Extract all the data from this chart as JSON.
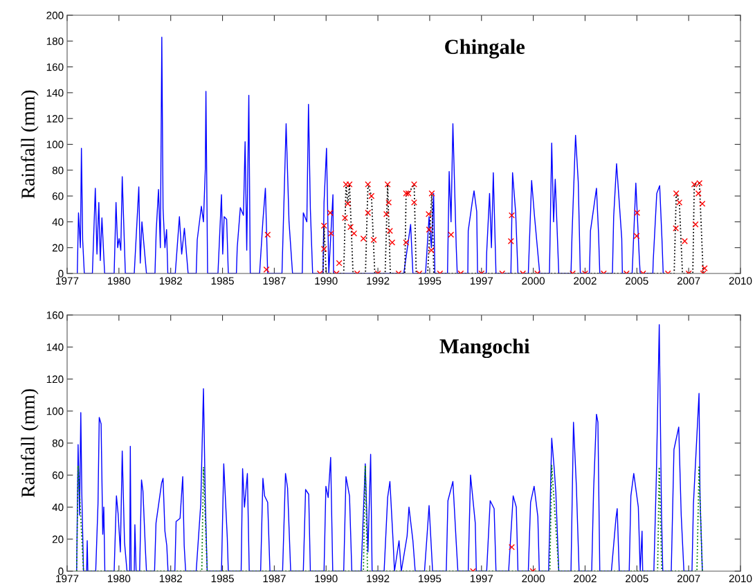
{
  "chart_data": [
    {
      "type": "line",
      "title": "Chingale",
      "ylabel": "Rainfall (mm)",
      "xlim": [
        1977.5,
        2010
      ],
      "ylim": [
        0,
        200
      ],
      "yticks": [
        0,
        20,
        40,
        60,
        80,
        100,
        120,
        140,
        160,
        180,
        200
      ],
      "grid": false,
      "xticks": [
        {
          "value": 1977.5,
          "label": "1977"
        },
        1980,
        {
          "value": 1982.5,
          "label": "1982"
        },
        1985,
        {
          "value": 1987.5,
          "label": "1987"
        },
        1990,
        {
          "value": 1992.5,
          "label": "1992"
        },
        1995,
        {
          "value": 1997.5,
          "label": "1997"
        },
        2000,
        {
          "value": 2002.5,
          "label": "2002"
        },
        2005,
        {
          "value": 2007.5,
          "label": "2007"
        },
        2010
      ],
      "series": [
        {
          "type": "line",
          "color": "#0000ff",
          "line_style": "solid",
          "marker": "none",
          "x": [
            1977.99,
            1978.05,
            1978.14,
            1978.19,
            1978.25,
            1978.33,
            1978.72,
            1978.86,
            1978.94,
            1979.03,
            1979.1,
            1979.18,
            1979.31,
            1979.77,
            1979.86,
            1979.94,
            1980.01,
            1980.09,
            1980.16,
            1980.31,
            1980.74,
            1980.96,
            1981.03,
            1981.11,
            1981.33,
            1981.74,
            1981.8,
            1981.91,
            1982.0,
            1982.07,
            1982.13,
            1982.22,
            1982.3,
            1982.36,
            1982.72,
            1982.92,
            1983.03,
            1983.16,
            1983.34,
            1983.73,
            1983.78,
            1983.98,
            1984.08,
            1984.17,
            1984.2,
            1984.28,
            1984.78,
            1984.95,
            1985.01,
            1985.08,
            1985.2,
            1985.28,
            1985.67,
            1985.71,
            1985.86,
            1986.01,
            1986.09,
            1986.17,
            1986.27,
            1986.34,
            1986.79,
            1986.95,
            1987.07,
            1987.18,
            1987.87,
            1988.07,
            1988.21,
            1988.38,
            1988.85,
            1988.9,
            1989.07,
            1989.15,
            1989.24,
            1989.35,
            1989.85,
            1989.9,
            1990.02,
            1990.13,
            1990.33,
            1990.36,
            1993.75,
            1994.08,
            1994.19,
            1994.8,
            1994.97,
            1995.08,
            1995.19,
            1995.25,
            1995.86,
            1995.94,
            1996.03,
            1996.12,
            1996.28,
            1996.33,
            1996.84,
            1996.86,
            1997.06,
            1997.14,
            1997.27,
            1997.31,
            1997.73,
            1997.75,
            1997.89,
            1997.98,
            1998.07,
            1998.2,
            1998.92,
            1999.0,
            1999.15,
            1999.26,
            1999.76,
            1999.92,
            2000.05,
            2000.31,
            2000.78,
            2000.89,
            2000.98,
            2001.06,
            2001.23,
            2001.82,
            2001.87,
            2002.04,
            2002.17,
            2002.27,
            2002.71,
            2002.76,
            2003.05,
            2003.15,
            2003.21,
            2003.82,
            2003.88,
            2004.02,
            2004.27,
            2004.3,
            2004.77,
            2004.79,
            2004.95,
            2005.12,
            2005.16,
            2005.77,
            2005.79,
            2005.96,
            2006.1,
            2006.21,
            2006.27
          ],
          "values": [
            0,
            47,
            20,
            97,
            26,
            0,
            0,
            66,
            15,
            55,
            10,
            43,
            0,
            0,
            55,
            20,
            27,
            18,
            75,
            0,
            0,
            67,
            8,
            40,
            0,
            0,
            33,
            65,
            20,
            183,
            50,
            20,
            34,
            0,
            0,
            44,
            15,
            35,
            0,
            0,
            26,
            52,
            40,
            81,
            141,
            0,
            0,
            61,
            15,
            44,
            42,
            0,
            0,
            20,
            51,
            45,
            102,
            18,
            138,
            0,
            0,
            41,
            66,
            0,
            0,
            116,
            40,
            0,
            0,
            47,
            40,
            131,
            50,
            0,
            0,
            55,
            97,
            0,
            61,
            0,
            0,
            38,
            0,
            0,
            44,
            20,
            62,
            0,
            0,
            79,
            40,
            116,
            21,
            0,
            0,
            33,
            56,
            64,
            48,
            0,
            0,
            16,
            62,
            20,
            78,
            0,
            0,
            78,
            47,
            0,
            0,
            72,
            46,
            0,
            0,
            101,
            40,
            73,
            0,
            0,
            30,
            107,
            71,
            0,
            0,
            33,
            66,
            31,
            0,
            0,
            44,
            85,
            27,
            0,
            0,
            7,
            70,
            11,
            0,
            0,
            10,
            62,
            68,
            27,
            0
          ]
        },
        {
          "type": "line",
          "color": "#000000",
          "line_style": "dotted",
          "marker": "none",
          "x": [
            1989.85,
            1989.9,
            1990.0,
            1990.85,
            1990.96,
            1991.05,
            1991.13,
            1991.3,
            1991.9,
            1992.02,
            1992.19,
            1992.35,
            1992.85,
            1992.97,
            1993.1,
            1993.8,
            1993.86,
            1993.97,
            1994.25,
            1994.35,
            1994.9,
            1995.1,
            1995.2,
            2006.8,
            2006.9,
            2007.05,
            2007.2,
            2007.7,
            2007.77,
            2008.02,
            2008.2
          ],
          "values": [
            0,
            37,
            0,
            0,
            69,
            54,
            69,
            0,
            0,
            69,
            60,
            0,
            0,
            69,
            0,
            0,
            62,
            62,
            69,
            0,
            0,
            62,
            0,
            0,
            62,
            55,
            0,
            0,
            69,
            70,
            0
          ]
        },
        {
          "type": "scatter",
          "color": "#ff0000",
          "marker": "cross",
          "x": [
            1987.18,
            1987.12,
            1989.9,
            1989.9,
            1990.2,
            1990.24,
            1990.63,
            1990.96,
            1991.13,
            1991.05,
            1990.91,
            1991.18,
            1991.35,
            1992.02,
            1992.19,
            1992.02,
            1991.8,
            1992.3,
            1992.97,
            1992.91,
            1993.02,
            1993.08,
            1993.19,
            1993.86,
            1993.86,
            1993.97,
            1994.25,
            1994.25,
            1994.95,
            1994.97,
            1995.1,
            1995.08,
            1996.03,
            1998.96,
            1998.92,
            2005.01,
            2004.99,
            2006.9,
            2007.05,
            2006.88,
            2007.31,
            2007.77,
            2008.02,
            2007.97,
            2008.16,
            2007.83,
            2008.27,
            1989.7,
            1990.5,
            1991.5,
            1992.5,
            1993.5,
            1994.5,
            1995.5,
            1996.5,
            1997.5,
            1998.5,
            1999.5,
            2000.2,
            2001.9,
            2002.5,
            2003.4,
            2004.5,
            2005.3,
            2006.5,
            2007.5,
            2008.2
          ],
          "values": [
            30,
            3,
            37,
            19,
            47,
            31,
            8,
            69,
            69,
            54,
            43,
            36,
            31,
            69,
            60,
            47,
            27,
            26,
            69,
            46,
            55,
            33,
            24,
            62,
            24,
            62,
            69,
            55,
            46,
            34,
            62,
            18,
            30,
            45,
            25,
            47,
            29,
            62,
            55,
            35,
            25,
            69,
            70,
            62,
            54,
            38,
            4,
            0,
            0,
            0,
            0,
            0,
            0,
            0,
            0,
            0,
            0,
            0,
            0,
            0,
            0,
            0,
            0,
            0,
            0,
            0,
            0
          ]
        }
      ]
    },
    {
      "type": "line",
      "title": "Mangochi",
      "ylabel": "Rainfall (mm)",
      "xlim": [
        1977.5,
        2010
      ],
      "ylim": [
        0,
        160
      ],
      "yticks": [
        0,
        20,
        40,
        60,
        80,
        100,
        120,
        140,
        160
      ],
      "grid": false,
      "xticks": [
        {
          "value": 1977.5,
          "label": "1977"
        },
        1980,
        {
          "value": 1982.5,
          "label": "1982"
        },
        1985,
        {
          "value": 1987.5,
          "label": "1987"
        },
        1990,
        {
          "value": 1992.5,
          "label": "1992"
        },
        1995,
        {
          "value": 1997.5,
          "label": "1997"
        },
        2000,
        {
          "value": 2002.5,
          "label": "2002"
        },
        2005,
        {
          "value": 2007.5,
          "label": "2007"
        },
        2010
      ],
      "series": [
        {
          "type": "line",
          "color": "#0000ff",
          "line_style": "solid",
          "marker": "none",
          "x": [
            1977.96,
            1978.03,
            1978.1,
            1978.16,
            1978.21,
            1978.29,
            1978.44,
            1978.47,
            1978.5,
            1978.88,
            1978.99,
            1979.05,
            1979.14,
            1979.22,
            1979.27,
            1979.32,
            1979.77,
            1979.88,
            1979.96,
            1980.07,
            1980.16,
            1980.27,
            1980.39,
            1980.52,
            1980.55,
            1980.59,
            1980.74,
            1980.77,
            1980.83,
            1981.0,
            1981.09,
            1981.16,
            1981.28,
            1981.33,
            1981.72,
            1981.79,
            1982.06,
            1982.13,
            1982.22,
            1982.31,
            1982.37,
            1982.7,
            1982.76,
            1982.95,
            1983.08,
            1983.15,
            1983.22,
            1983.73,
            1983.95,
            1984.08,
            1984.17,
            1984.26,
            1984.95,
            1985.06,
            1985.23,
            1985.28,
            1985.9,
            1985.97,
            1986.06,
            1986.2,
            1986.29,
            1986.84,
            1986.95,
            1987.03,
            1987.18,
            1987.29,
            1987.9,
            1988.04,
            1988.14,
            1988.29,
            1988.9,
            1989.01,
            1989.16,
            1989.24,
            1989.9,
            1989.99,
            1990.1,
            1990.22,
            1990.32,
            1990.85,
            1990.96,
            1991.13,
            1991.24,
            1991.69,
            1991.89,
            1992.02,
            1992.15,
            1992.22,
            1992.8,
            1992.97,
            1993.08,
            1993.24,
            1993.3,
            1993.52,
            1993.63,
            1993.91,
            1994.0,
            1994.19,
            1994.3,
            1994.75,
            1994.86,
            1994.97,
            1995.14,
            1995.8,
            1995.88,
            1996.12,
            1996.28,
            1996.36,
            1996.86,
            1996.97,
            1997.2,
            1997.25,
            1997.75,
            1997.92,
            1998.11,
            1998.2,
            1998.81,
            1999.03,
            1999.18,
            1999.26,
            1999.76,
            1999.87,
            2000.04,
            2000.22,
            2000.29,
            2000.74,
            2000.89,
            2001.01,
            2001.09,
            2001.23,
            2001.82,
            2001.94,
            2002.08,
            2002.21,
            2002.82,
            2002.91,
            2003.05,
            2003.12,
            2003.21,
            2003.77,
            2003.99,
            2004.05,
            2004.15,
            2004.63,
            2004.71,
            2004.85,
            2005.07,
            2005.16,
            2005.25,
            2005.28,
            2005.82,
            2005.94,
            2006.08,
            2006.19,
            2006.25,
            2006.66,
            2006.79,
            2007.02,
            2007.14,
            2007.27,
            2007.66,
            2007.73,
            2008.0,
            2008.05,
            2008.16
          ],
          "values": [
            0,
            79,
            35,
            99,
            48,
            0,
            0,
            19,
            0,
            0,
            42,
            96,
            92,
            23,
            40,
            0,
            0,
            47,
            36,
            12,
            75,
            18,
            0,
            0,
            78,
            0,
            0,
            29,
            0,
            0,
            57,
            50,
            13,
            0,
            0,
            30,
            55,
            58,
            25,
            16,
            0,
            0,
            31,
            33,
            59,
            16,
            0,
            0,
            42,
            114,
            44,
            0,
            0,
            67,
            21,
            0,
            0,
            64,
            40,
            61,
            0,
            0,
            58,
            47,
            43,
            0,
            0,
            61,
            52,
            0,
            0,
            51,
            48,
            0,
            0,
            53,
            46,
            71,
            0,
            0,
            59,
            47,
            0,
            0,
            67,
            12,
            73,
            0,
            0,
            46,
            56,
            17,
            0,
            19,
            0,
            22,
            40,
            19,
            0,
            0,
            20,
            41,
            0,
            0,
            44,
            56,
            18,
            0,
            0,
            60,
            30,
            0,
            0,
            44,
            39,
            0,
            0,
            47,
            40,
            0,
            0,
            43,
            53,
            34,
            0,
            0,
            83,
            64,
            49,
            0,
            0,
            93,
            53,
            0,
            0,
            50,
            98,
            93,
            0,
            0,
            33,
            39,
            0,
            0,
            47,
            61,
            40,
            0,
            25,
            0,
            0,
            59,
            154,
            35,
            0,
            0,
            76,
            90,
            35,
            0,
            0,
            42,
            111,
            45,
            0
          ]
        },
        {
          "type": "line",
          "color": "#008000",
          "line_style": "dotted",
          "marker": "none",
          "x": [
            1977.96,
            1978.03,
            1978.29,
            1984.0,
            1984.08,
            1984.26,
            1991.8,
            1991.89,
            1992.0,
            2000.8,
            2000.89,
            2001.23,
            2006.0,
            2006.08,
            2006.2,
            2007.9,
            2008.0,
            2008.16
          ],
          "values": [
            0,
            66,
            0,
            0,
            65,
            0,
            0,
            66,
            0,
            0,
            66,
            0,
            0,
            65,
            0,
            0,
            65,
            0
          ]
        },
        {
          "type": "scatter",
          "color": "#ff0000",
          "marker": "cross",
          "x": [
            1997.09,
            1998.96,
            1999.98
          ],
          "values": [
            0,
            15,
            0
          ]
        }
      ]
    }
  ]
}
